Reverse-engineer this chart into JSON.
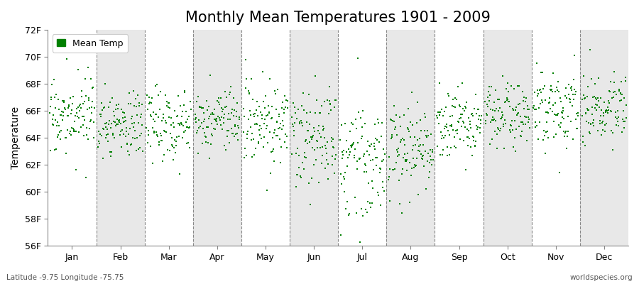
{
  "title": "Monthly Mean Temperatures 1901 - 2009",
  "ylabel": "Temperature",
  "months": [
    "Jan",
    "Feb",
    "Mar",
    "Apr",
    "May",
    "Jun",
    "Jul",
    "Aug",
    "Sep",
    "Oct",
    "Nov",
    "Dec"
  ],
  "ylim": [
    56,
    72
  ],
  "yticks": [
    56,
    58,
    60,
    62,
    64,
    66,
    68,
    70,
    72
  ],
  "ytick_labels": [
    "56F",
    "58F",
    "60F",
    "62F",
    "64F",
    "66F",
    "68F",
    "70F",
    "72F"
  ],
  "dot_color": "#008000",
  "dot_size": 3,
  "figure_bg": "#ffffff",
  "plot_bg_white": "#ffffff",
  "plot_bg_gray": "#e8e8e8",
  "dash_color": "#888888",
  "title_fontsize": 15,
  "axis_fontsize": 10,
  "tick_fontsize": 9,
  "legend_label": "Mean Temp",
  "bottom_left": "Latitude -9.75 Longitude -75.75",
  "bottom_right": "worldspecies.org",
  "n_years": 109,
  "month_means": [
    65.5,
    65.0,
    65.2,
    65.4,
    65.0,
    63.8,
    62.5,
    63.2,
    65.0,
    65.8,
    66.2,
    66.0
  ],
  "month_stds": [
    1.3,
    1.2,
    1.4,
    1.2,
    1.5,
    1.8,
    2.0,
    1.6,
    1.4,
    1.3,
    1.3,
    1.2
  ],
  "random_seed": 17
}
